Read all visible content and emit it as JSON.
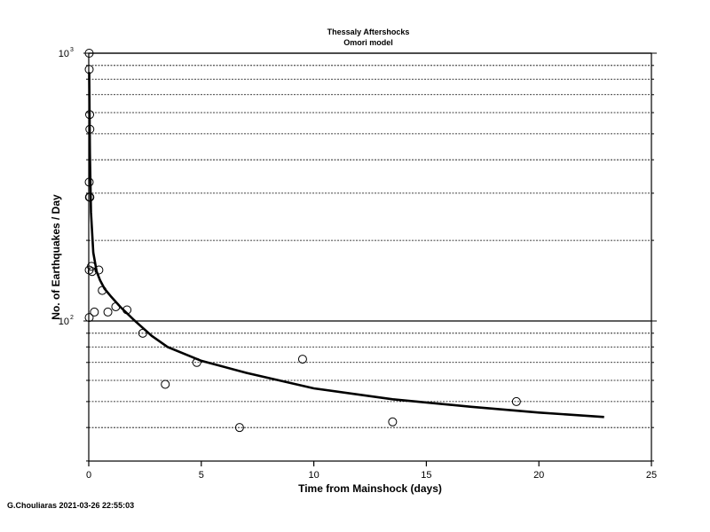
{
  "chart_data": {
    "type": "scatter",
    "title": "Thessaly Aftershocks",
    "subtitle": "Omori model",
    "xlabel": "Time from Mainshock (days)",
    "ylabel": "No. of Earthquakes / Day",
    "xlim": [
      0,
      25
    ],
    "ylim": [
      25,
      1000
    ],
    "y_scale": "log",
    "x_ticks": [
      "0",
      "5",
      "10",
      "15",
      "20",
      "25"
    ],
    "y_ticks": [
      {
        "value": 100,
        "label": "10",
        "exp": "2"
      },
      {
        "value": 1000,
        "label": "10",
        "exp": "3"
      }
    ],
    "grid": "y-major-minor",
    "legend": "none",
    "series": [
      {
        "kind": "points",
        "x": [
          0.02,
          0.02,
          0.04,
          0.05,
          0.02,
          0.03,
          0.05,
          0.02,
          0.12,
          0.02,
          0.15,
          0.25,
          0.45,
          0.6,
          0.85,
          1.2,
          1.7,
          2.4,
          3.4,
          4.8,
          6.7,
          9.5,
          13.5,
          19.0
        ],
        "y": [
          1000,
          870,
          590,
          520,
          330,
          290,
          290,
          103,
          160,
          155,
          153,
          108,
          155,
          130,
          108,
          113,
          110,
          90,
          58,
          70,
          40,
          72,
          42,
          50
        ]
      },
      {
        "kind": "line",
        "x": [
          0.02,
          0.05,
          0.1,
          0.2,
          0.35,
          0.5,
          0.7,
          1.0,
          1.4,
          2.0,
          2.8,
          3.5,
          5.0,
          7.0,
          10.0,
          13.5,
          17.0,
          20.0,
          22.9
        ],
        "y": [
          850,
          420,
          255,
          180,
          153,
          142,
          132,
          123,
          113,
          101,
          88,
          80,
          71,
          64,
          56,
          51,
          47.8,
          45.5,
          43.8
        ]
      }
    ]
  },
  "footer": {
    "credit": "G.Chouliaras 2021-03-26 22:55:03"
  },
  "colors": {
    "ink": "#000000",
    "background": "#ffffff"
  }
}
